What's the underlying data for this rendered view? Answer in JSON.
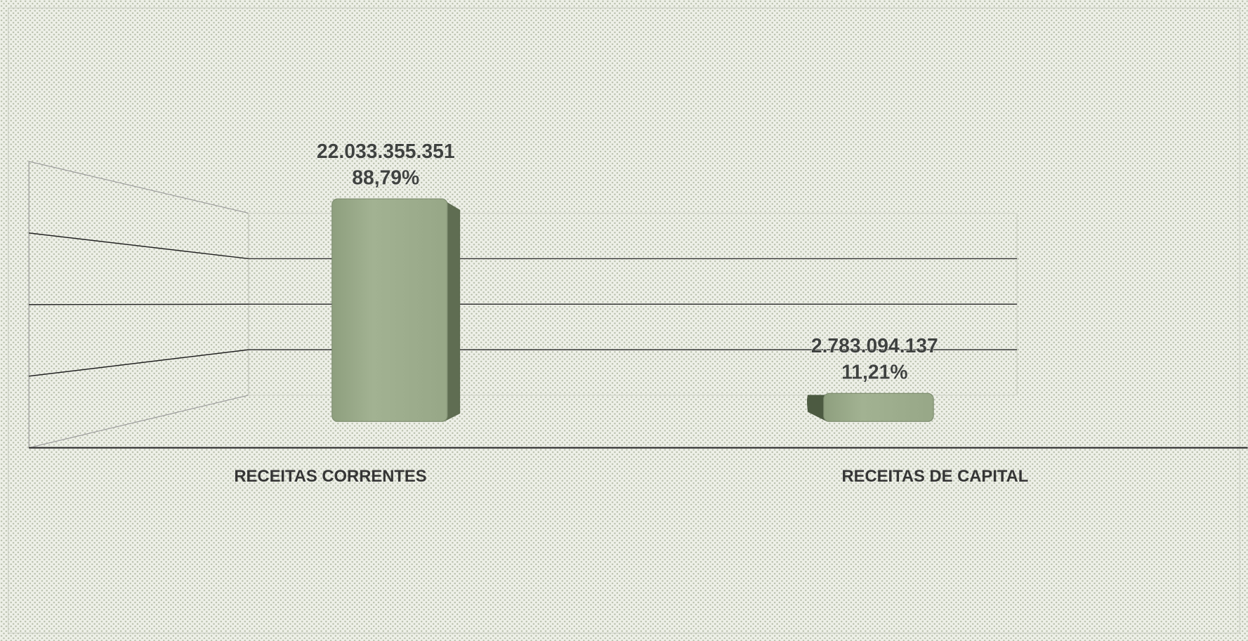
{
  "chart_data": {
    "type": "bar3d",
    "categories": [
      "RECEITAS CORRENTES",
      "RECEITAS DE CAPITAL"
    ],
    "values": [
      22033355351,
      2783094137
    ],
    "value_labels": [
      "22.033.355.351",
      "2.783.094.137"
    ],
    "percentages": [
      88.79,
      11.21
    ],
    "percentage_labels": [
      "88,79%",
      "11,21%"
    ],
    "color": "#9aaa8a",
    "ylim": [
      0,
      24000000000
    ],
    "yticks": [
      0,
      6000000000,
      12000000000,
      18000000000,
      24000000000
    ],
    "grid": true
  }
}
